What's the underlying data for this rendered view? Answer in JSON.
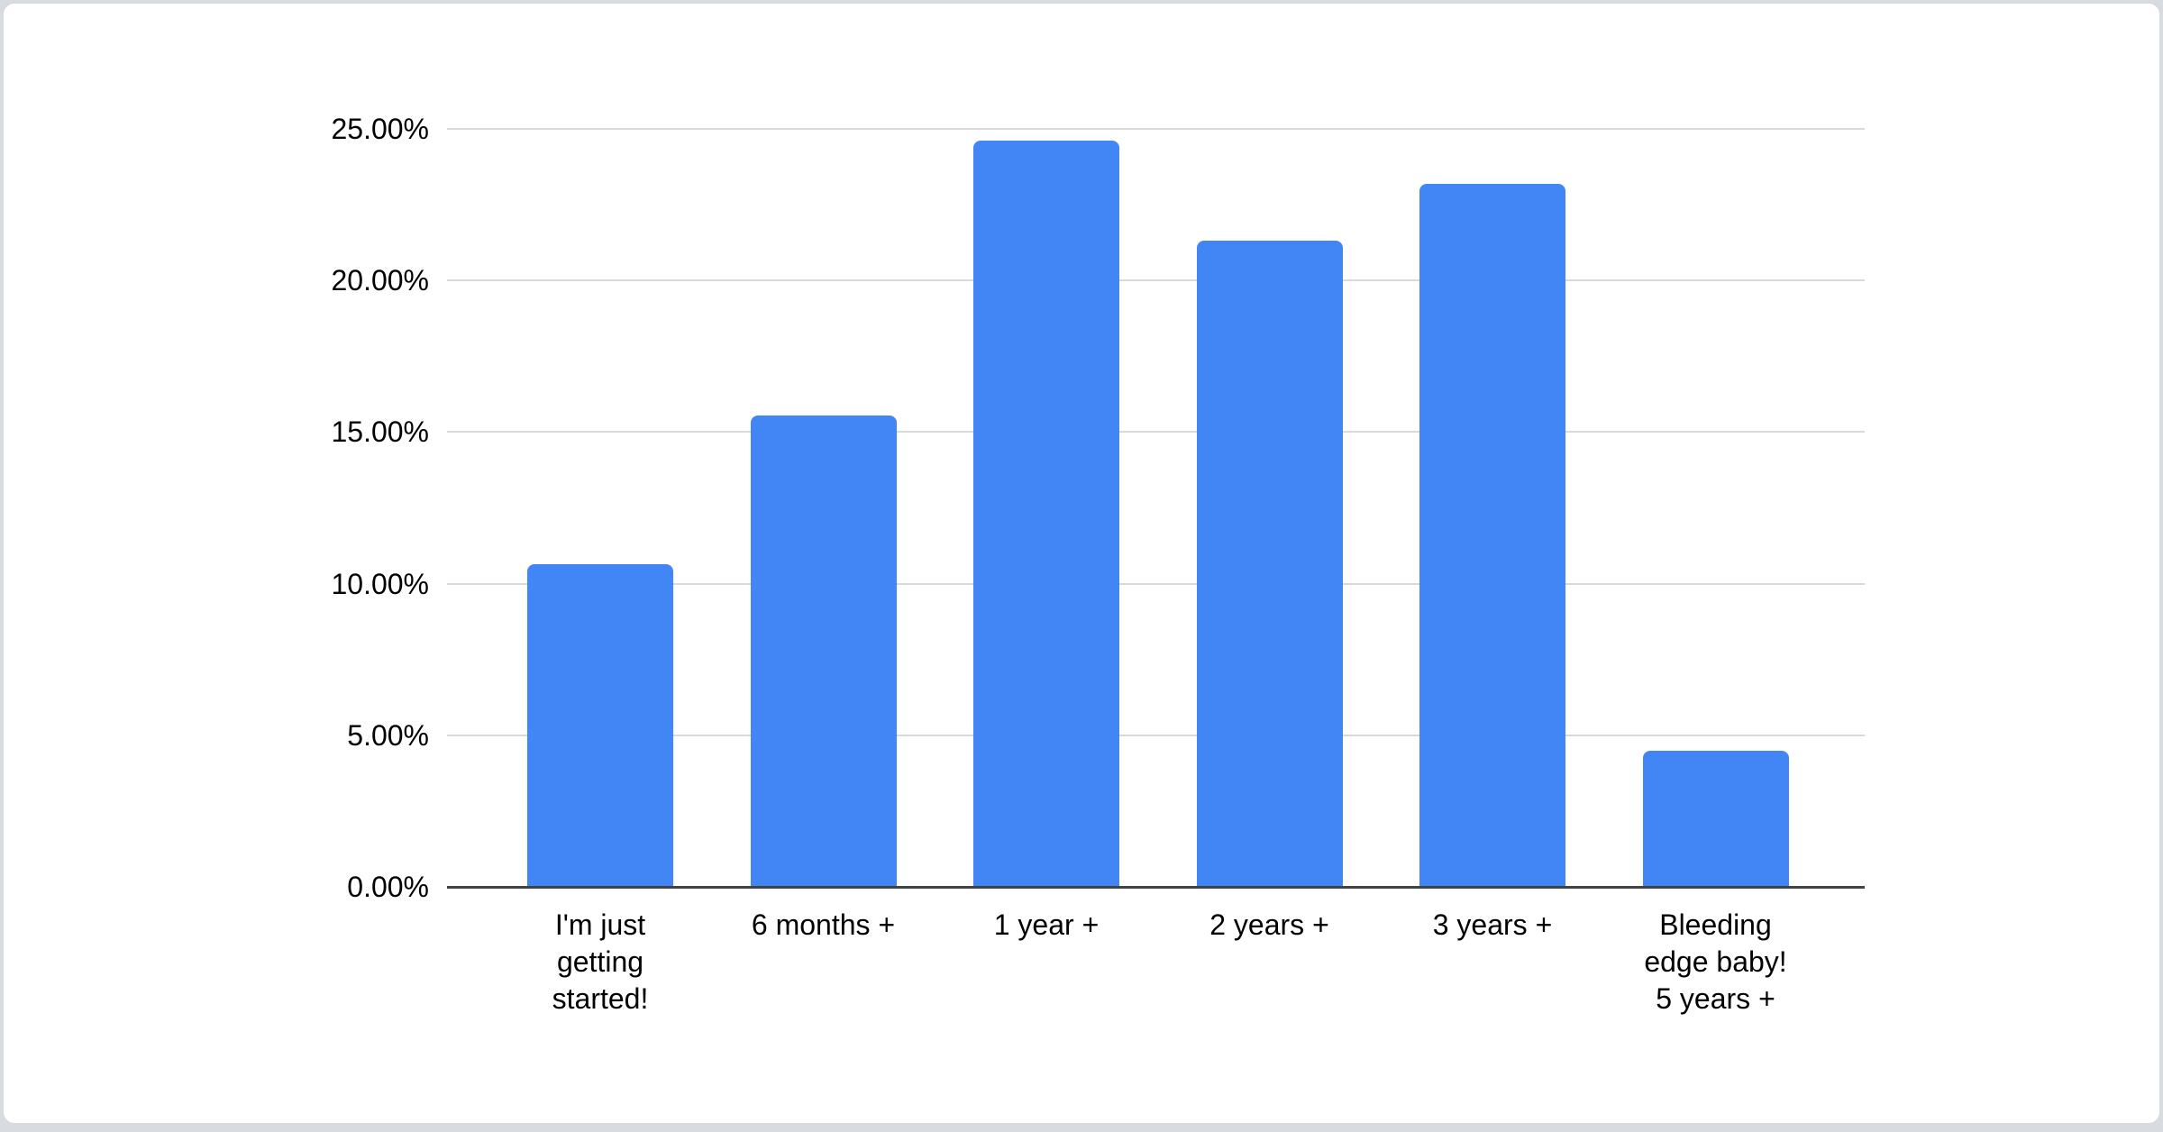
{
  "page": {
    "background_color": "#d8dbdf",
    "card": {
      "background_color": "#ffffff",
      "border_color": "#d7dade"
    }
  },
  "chart_data": {
    "type": "bar",
    "title": "",
    "xlabel": "",
    "ylabel": "",
    "categories": [
      "I'm just getting started!",
      "6 months +",
      "1 year +",
      "2 years +",
      "3 years +",
      "Bleeding edge baby! 5 years +"
    ],
    "categories_wrapped": [
      [
        "I'm just",
        "getting",
        "started!"
      ],
      [
        "6 months +"
      ],
      [
        "1 year +"
      ],
      [
        "2 years +"
      ],
      [
        "3 years +"
      ],
      [
        "Bleeding",
        "edge baby!",
        "5 years +"
      ]
    ],
    "series": [
      {
        "name": "",
        "values": [
          10.65,
          15.55,
          24.6,
          21.3,
          23.2,
          4.5
        ]
      }
    ],
    "value_unit": "percent",
    "ylim": [
      0,
      25
    ],
    "y_ticks": [
      {
        "value": 0,
        "label": "0.00%"
      },
      {
        "value": 5,
        "label": "5.00%"
      },
      {
        "value": 10,
        "label": "10.00%"
      },
      {
        "value": 15,
        "label": "15.00%"
      },
      {
        "value": 20,
        "label": "20.00%"
      },
      {
        "value": 25,
        "label": "25.00%"
      }
    ],
    "grid": true,
    "legend_position": "none",
    "colors": {
      "bar": "#4285f4",
      "gridline": "#d9d9d9",
      "axis_line": "#424242",
      "tick_text": "#000000",
      "category_text": "#000000"
    }
  }
}
